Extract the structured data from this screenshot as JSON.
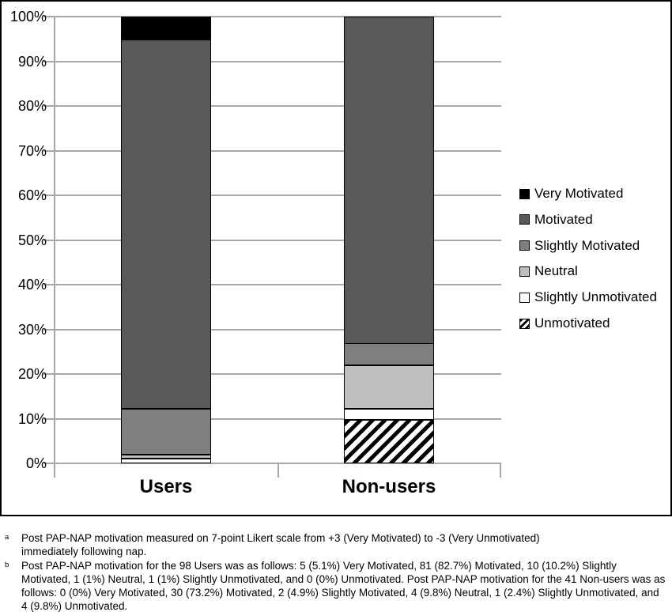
{
  "chart_data": {
    "type": "bar",
    "stacked": true,
    "percent_scale": true,
    "categories": [
      "Users",
      "Non-users"
    ],
    "series": [
      {
        "name": "Unmotivated",
        "values": [
          0,
          9.8
        ],
        "fill": "hatch",
        "color": "#ffffff"
      },
      {
        "name": "Slightly Unmotivated",
        "values": [
          1,
          2.4
        ],
        "fill": "solid",
        "color": "#ffffff"
      },
      {
        "name": "Neutral",
        "values": [
          1,
          9.8
        ],
        "fill": "solid",
        "color": "#bfbfbf"
      },
      {
        "name": "Slightly Motivated",
        "values": [
          10.2,
          4.9
        ],
        "fill": "solid",
        "color": "#7f7f7f"
      },
      {
        "name": "Motivated",
        "values": [
          82.7,
          73.2
        ],
        "fill": "solid",
        "color": "#595959"
      },
      {
        "name": "Very Motivated",
        "values": [
          5.1,
          0
        ],
        "fill": "solid",
        "color": "#000000"
      }
    ],
    "legend": [
      "Very Motivated",
      "Motivated",
      "Slightly Motivated",
      "Neutral",
      "Slightly Unmotivated",
      "Unmotivated"
    ],
    "legend_position": "right",
    "y_ticks": [
      "100%",
      "90%",
      "80%",
      "70%",
      "60%",
      "50%",
      "40%",
      "30%",
      "20%",
      "10%",
      "0%"
    ],
    "ylim": [
      0,
      100
    ],
    "grid": true,
    "title": "",
    "xlabel": "",
    "ylabel": ""
  },
  "colors": {
    "grid": "#a6a6a6",
    "chart_border": "#000000",
    "hatch_foreground": "#000000",
    "hatch_background": "#ffffff"
  },
  "footnotes": [
    {
      "marker": "a",
      "text": "Post PAP-NAP motivation measured on 7-point Likert scale from +3 (Very Motivated) to -3 (Very Unmotivated)\nimmediately following nap."
    },
    {
      "marker": "b",
      "text": "Post PAP-NAP motivation for the 98 Users was as follows: 5 (5.1%) Very Motivated, 81 (82.7%) Motivated, 10 (10.2%) Slightly Motivated, 1 (1%) Neutral, 1 (1%) Slightly Unmotivated, and 0 (0%) Unmotivated. Post PAP-NAP motivation for the 41 Non-users was as follows: 0 (0%) Very Motivated, 30 (73.2%) Motivated, 2 (4.9%) Slightly Motivated, 4 (9.8%) Neutral, 1 (2.4%) Slightly Unmotivated, and 4 (9.8%) Unmotivated."
    }
  ]
}
